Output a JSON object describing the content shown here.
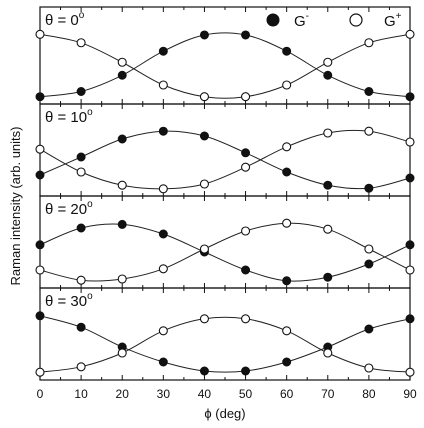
{
  "chart_data": {
    "type": "scatter",
    "xlabel": "ϕ (deg)",
    "ylabel": "Raman intensity (arb. units)",
    "xlim": [
      0,
      90
    ],
    "x_ticks": [
      "0",
      "10",
      "20",
      "30",
      "40",
      "50",
      "60",
      "70",
      "80",
      "90"
    ],
    "legend": {
      "placement": "top-right",
      "entries": [
        {
          "label": "G",
          "superscript": "-",
          "marker": "filled-circle"
        },
        {
          "label": "G",
          "superscript": "+",
          "marker": "open-circle"
        }
      ]
    },
    "panels": [
      {
        "title": "θ = 0",
        "title_superscript": "o",
        "x": [
          0,
          10,
          20,
          30,
          40,
          50,
          60,
          70,
          80,
          90
        ],
        "series": [
          {
            "label": "G-",
            "marker": "filled",
            "values": [
              0.02,
              0.1,
              0.35,
              0.72,
              0.97,
              0.97,
              0.72,
              0.35,
              0.1,
              0.02
            ]
          },
          {
            "label": "G+",
            "marker": "open",
            "values": [
              0.98,
              0.85,
              0.55,
              0.2,
              0.02,
              0.02,
              0.2,
              0.55,
              0.85,
              0.98
            ]
          }
        ]
      },
      {
        "title": "θ = 10",
        "title_superscript": "o",
        "x": [
          0,
          10,
          20,
          30,
          40,
          50,
          60,
          70,
          80,
          90
        ],
        "series": [
          {
            "label": "G-",
            "marker": "filled",
            "values": [
              0.25,
              0.55,
              0.85,
              0.98,
              0.9,
              0.62,
              0.3,
              0.08,
              0.03,
              0.2
            ]
          },
          {
            "label": "G+",
            "marker": "open",
            "values": [
              0.68,
              0.3,
              0.08,
              0.02,
              0.1,
              0.38,
              0.72,
              0.95,
              0.98,
              0.8
            ]
          }
        ]
      },
      {
        "title": "θ = 20",
        "title_superscript": "o",
        "x": [
          0,
          10,
          20,
          30,
          40,
          50,
          60,
          70,
          80,
          90
        ],
        "series": [
          {
            "label": "G-",
            "marker": "filled",
            "values": [
              0.62,
              0.9,
              0.96,
              0.8,
              0.5,
              0.2,
              0.02,
              0.08,
              0.3,
              0.62
            ]
          },
          {
            "label": "G+",
            "marker": "open",
            "values": [
              0.2,
              0.03,
              0.05,
              0.22,
              0.55,
              0.85,
              0.98,
              0.88,
              0.55,
              0.2
            ]
          }
        ]
      },
      {
        "title": "θ = 30",
        "title_superscript": "o",
        "x": [
          0,
          10,
          20,
          30,
          40,
          50,
          60,
          70,
          80,
          90
        ],
        "series": [
          {
            "label": "G-",
            "marker": "filled",
            "values": [
              0.97,
              0.78,
              0.45,
              0.2,
              0.05,
              0.05,
              0.2,
              0.45,
              0.75,
              0.92
            ]
          },
          {
            "label": "G+",
            "marker": "open",
            "values": [
              0.03,
              0.12,
              0.35,
              0.72,
              0.92,
              0.92,
              0.72,
              0.35,
              0.1,
              0.03
            ]
          }
        ]
      }
    ]
  }
}
